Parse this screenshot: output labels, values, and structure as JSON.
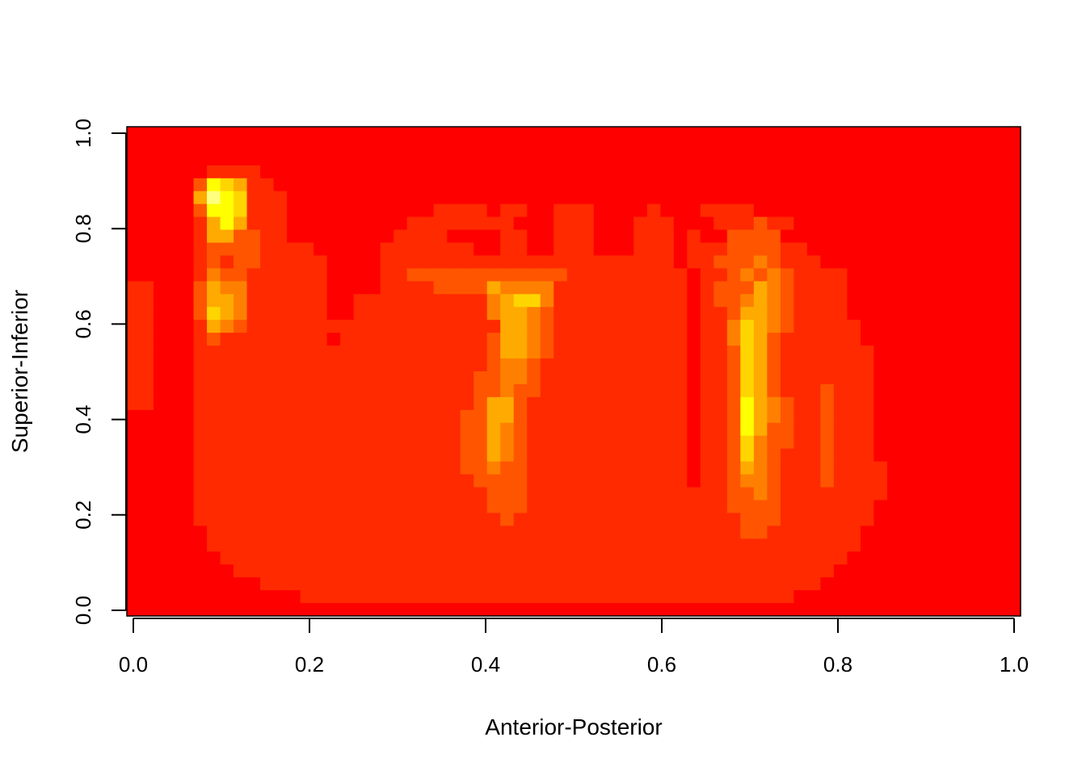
{
  "chart_data": {
    "type": "heatmap",
    "title": "",
    "xlabel": "Anterior-Posterior",
    "ylabel": "Superior-Inferior",
    "xlim": [
      0,
      1
    ],
    "ylim": [
      0,
      1
    ],
    "x_ticks": [
      "0.0",
      "0.2",
      "0.4",
      "0.6",
      "0.8",
      "1.0"
    ],
    "y_ticks": [
      "0.0",
      "0.2",
      "0.4",
      "0.6",
      "0.8",
      "1.0"
    ],
    "x_tick_values": [
      0,
      0.2,
      0.4,
      0.6,
      0.8,
      1.0
    ],
    "y_tick_values": [
      0,
      0.2,
      0.4,
      0.6,
      0.8,
      1.0
    ],
    "grid": false,
    "legend": "none",
    "color_scale": [
      "#FF0000",
      "#FF2A00",
      "#FF5500",
      "#FF8000",
      "#FFAA00",
      "#FFD500",
      "#FFFF00",
      "#FFFF80"
    ],
    "rows": [
      "0000000000000000000000000000000000000000000000000000000000000000000",
      "0000000000000000000000000000000000000000000000000000000000000000000",
      "0000000000000000000000000000000000000000000000000000000000000000000",
      "0000001111000000000000000000000000000000000000000000000000000000000",
      "0000026541100000000000000000000000000000000000000000000000000000000",
      "0000047651110000000000000000000000000000000000000000000000000000000",
      "0000026651110000000000011110110011100001000111100000000000000000000",
      "0000014641110000000001111111100011100011100011121100000000000000000",
      "0000014422110000000011110000110011100011101002222000000000000000000",
      "0000012222111100000111111100110011100011101112222110000000000000000",
      "0000012122111110000111111111111111111111101122232111000000000000000",
      "0000013221111110000112222222222221111111110112323211110000000000000",
      "1100024331111110000111122224333311111111110122243211110000000000000",
      "1100024431111110011111111113455311111111110122343211110000000000000",
      "1100025431111110011111111113443211111111110112443211110000000000000",
      "1100014321111111111111111111443211111111110113543211111000000000000",
      "1100012111111110111111111112443211111111110113542111111000000000000",
      "1100011111111111111111111112443211111111110112542111111100000000000",
      "1100011111111111111111111112332111111111110112542111111100000000000",
      "1100011111111111111111111122332111111111110112542111111100000000000",
      "1100011111111111111111111122322111111111110112542111211100000000000",
      "1100011111111111111111111124421111111111110112643211211100000000000",
      "0000011111111111111111111224421111111111110112643211211100000000000",
      "0000011111111111111111111224321111111111110112642211211100000000000",
      "0000011111111111111111111224321111111111110112532211211100000000000",
      "0000011111111111111111111224321111111111110112532111211100000000000",
      "0000011111111111111111111223221111111111110112432111211110000000000",
      "0000011111111111111111111122221111111111110112332111211110000000000",
      "0000011111111111111111111112221111111111111112232111111110000000000",
      "0000011111111111111111111112221111111111111112222111111100000000000",
      "0000011111111111111111111111211111111111111111222111111100000000000",
      "0000001111111111111111111111111111111111111111221111111000000000000",
      "0000001111111111111111111111111111111111111111111111111000000000000",
      "0000000111111111111111111111111111111111111111111111110000000000000",
      "0000000011111111111111111111111111111111111111111111100000000000000",
      "0000000000111111111111111111111111111111111111111111000000000000000",
      "0000000000000111111111111111111111111111111111111100000000000000000",
      "0000000000000000000000000000000000000000000000000000000000000000000"
    ]
  }
}
